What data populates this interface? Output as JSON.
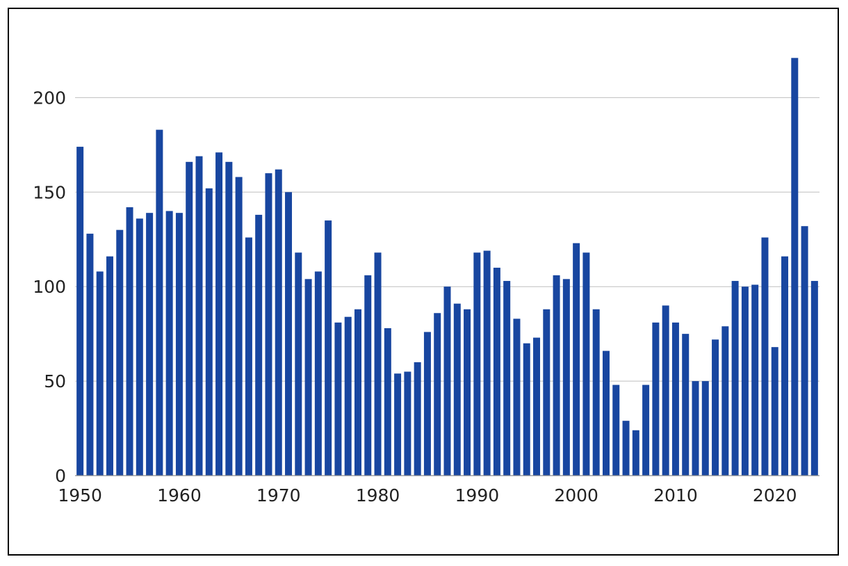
{
  "chart_data": {
    "type": "bar",
    "title": "",
    "xlabel": "",
    "ylabel": "",
    "ylim": [
      0,
      230
    ],
    "xlim": [
      1950,
      2024
    ],
    "grid": "horizontal",
    "legend": "none",
    "bar_color": "#1846a0",
    "gridline_color": "#bfbfbf",
    "yticks": [
      "0",
      "50",
      "100",
      "150",
      "200"
    ],
    "xticks": [
      "1950",
      "1960",
      "1970",
      "1980",
      "1990",
      "2000",
      "2010",
      "2020"
    ],
    "x": [
      1950,
      1951,
      1952,
      1953,
      1954,
      1955,
      1956,
      1957,
      1958,
      1959,
      1960,
      1961,
      1962,
      1963,
      1964,
      1965,
      1966,
      1967,
      1968,
      1969,
      1970,
      1971,
      1972,
      1973,
      1974,
      1975,
      1976,
      1977,
      1978,
      1979,
      1980,
      1981,
      1982,
      1983,
      1984,
      1985,
      1986,
      1987,
      1988,
      1989,
      1990,
      1991,
      1992,
      1993,
      1994,
      1995,
      1996,
      1997,
      1998,
      1999,
      2000,
      2001,
      2002,
      2003,
      2004,
      2005,
      2006,
      2007,
      2008,
      2009,
      2010,
      2011,
      2012,
      2013,
      2014,
      2015,
      2016,
      2017,
      2018,
      2019,
      2020,
      2021,
      2022,
      2023,
      2024
    ],
    "values": [
      174,
      128,
      108,
      116,
      130,
      142,
      136,
      139,
      183,
      140,
      139,
      166,
      169,
      152,
      171,
      166,
      158,
      126,
      138,
      160,
      162,
      150,
      118,
      104,
      108,
      135,
      81,
      84,
      88,
      106,
      118,
      78,
      54,
      55,
      60,
      76,
      86,
      100,
      91,
      88,
      118,
      119,
      110,
      103,
      83,
      70,
      73,
      88,
      106,
      104,
      123,
      118,
      88,
      66,
      48,
      29,
      24,
      48,
      81,
      90,
      81,
      75,
      50,
      50,
      72,
      79,
      103,
      100,
      101,
      126,
      68,
      116,
      221,
      132,
      103
    ]
  }
}
